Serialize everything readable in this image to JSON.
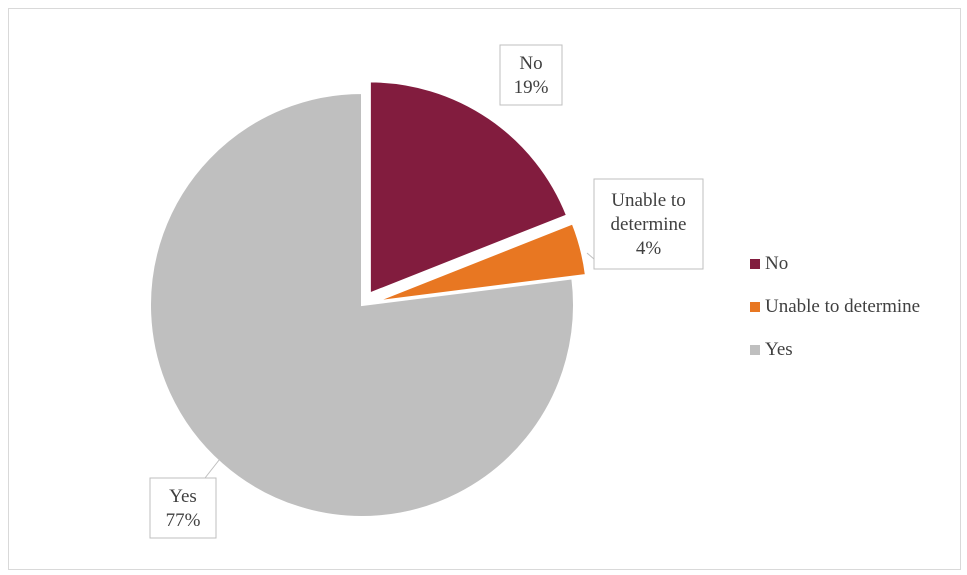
{
  "chart_data": {
    "type": "pie",
    "slices": [
      {
        "label": "No",
        "value": 19,
        "color": "#821c3e",
        "data_label": [
          "No",
          "19%"
        ],
        "exploded": true
      },
      {
        "label": "Unable to determine",
        "value": 4,
        "color": "#e87722",
        "data_label": [
          "Unable to",
          "determine",
          "4%"
        ],
        "exploded": true
      },
      {
        "label": "Yes",
        "value": 77,
        "color": "#bfbfbf",
        "data_label": [
          "Yes",
          "77%"
        ],
        "exploded": false
      }
    ],
    "legend": {
      "position": "right",
      "items": [
        {
          "label": "No",
          "color": "#821c3e"
        },
        {
          "label": "Unable to determine",
          "color": "#e87722"
        },
        {
          "label": "Yes",
          "color": "#bfbfbf"
        }
      ]
    }
  }
}
